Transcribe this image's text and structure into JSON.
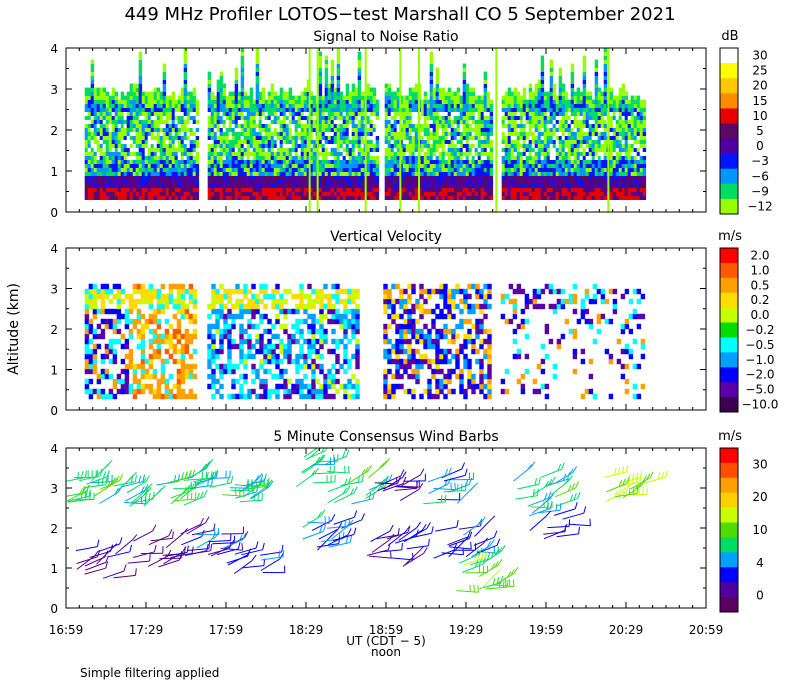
{
  "title": "449 MHz Profiler LOTOS−test Marshall CO  5 September 2021",
  "footnote": "Simple filtering applied",
  "chart_data": [
    {
      "type": "heatmap",
      "title": "Signal to Noise Ratio",
      "ylabel": "",
      "ylim": [
        0,
        4
      ],
      "yticks": [
        "0",
        "1",
        "2",
        "3",
        "4"
      ],
      "colorbar": {
        "unit": "dB",
        "labels": [
          "30",
          "25",
          "20",
          "15",
          "10",
          "5",
          "0",
          "−3",
          "−6",
          "−9",
          "−12"
        ],
        "colors": [
          "#ffffff",
          "#ffff00",
          "#ffc800",
          "#ff8c00",
          "#e60000",
          "#5a0a64",
          "#5000a0",
          "#0014ff",
          "#0096ff",
          "#00dc64",
          "#96ff00"
        ]
      },
      "gaps": [
        [
          "17:48",
          "17:52"
        ],
        [
          "18:56",
          "18:58"
        ],
        [
          "19:39",
          "19:42"
        ]
      ],
      "data_window": [
        "17:06",
        "20:36"
      ]
    },
    {
      "type": "heatmap",
      "title": "Vertical Velocity",
      "ylabel": "Altitude (km)",
      "ylim": [
        0,
        4
      ],
      "yticks": [
        "0",
        "1",
        "2",
        "3",
        "4"
      ],
      "colorbar": {
        "unit": "m/s",
        "labels": [
          "2.0",
          "1.0",
          "0.5",
          "0.2",
          "0.0",
          "−0.2",
          "−0.5",
          "−1.0",
          "−2.0",
          "−5.0",
          "−10.0"
        ],
        "colors": [
          "#ff0000",
          "#ff5a00",
          "#ffa000",
          "#ffdc00",
          "#c8ff00",
          "#00dc00",
          "#00ffff",
          "#00a0ff",
          "#0000ff",
          "#5a00aa",
          "#3c0050"
        ]
      }
    },
    {
      "type": "scatter",
      "title": "5 Minute Consensus Wind Barbs",
      "ylabel": "",
      "ylim": [
        0,
        4
      ],
      "yticks": [
        "0",
        "1",
        "2",
        "3",
        "4"
      ],
      "colorbar": {
        "unit": "m/s",
        "labels": [
          "30",
          "20",
          "10",
          "4",
          "0"
        ],
        "colors": [
          "#ff0000",
          "#ff5000",
          "#ffa000",
          "#ffd000",
          "#c8ff00",
          "#50dc00",
          "#00dc64",
          "#00a0ff",
          "#0000ff",
          "#5000a0",
          "#5a0064"
        ]
      },
      "clusters": [
        {
          "t": "17:05",
          "alt": 2.9,
          "speed": 12
        },
        {
          "t": "17:10",
          "alt": 1.1,
          "speed": 3
        },
        {
          "t": "17:25",
          "alt": 2.8,
          "speed": 11
        },
        {
          "t": "17:30",
          "alt": 1.4,
          "speed": 2
        },
        {
          "t": "17:45",
          "alt": 2.9,
          "speed": 12
        },
        {
          "t": "17:50",
          "alt": 1.5,
          "speed": 5
        },
        {
          "t": "18:05",
          "alt": 3.0,
          "speed": 11
        },
        {
          "t": "18:05",
          "alt": 1.2,
          "speed": 6
        },
        {
          "t": "18:32",
          "alt": 3.4,
          "speed": 11
        },
        {
          "t": "18:35",
          "alt": 1.8,
          "speed": 8
        },
        {
          "t": "18:45",
          "alt": 2.9,
          "speed": 12
        },
        {
          "t": "18:58",
          "alt": 3.0,
          "speed": 4
        },
        {
          "t": "19:00",
          "alt": 1.4,
          "speed": 5
        },
        {
          "t": "19:20",
          "alt": 2.9,
          "speed": 10
        },
        {
          "t": "19:25",
          "alt": 1.6,
          "speed": 7
        },
        {
          "t": "19:33",
          "alt": 0.8,
          "speed": 14
        },
        {
          "t": "19:55",
          "alt": 2.9,
          "speed": 12
        },
        {
          "t": "20:00",
          "alt": 2.1,
          "speed": 6
        },
        {
          "t": "20:28",
          "alt": 2.9,
          "speed": 17
        }
      ]
    }
  ],
  "x_axis": {
    "label": "UT  (CDT − 5)",
    "sublabel": "noon",
    "ticks": [
      "16:59",
      "17:29",
      "17:59",
      "18:29",
      "18:59",
      "19:29",
      "19:59",
      "20:29",
      "20:59"
    ]
  }
}
